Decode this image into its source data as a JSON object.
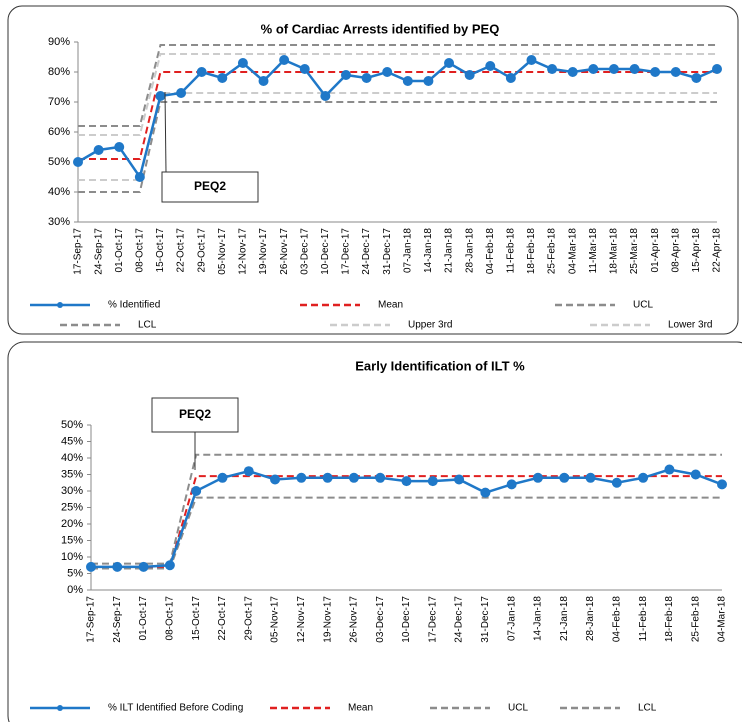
{
  "chart_data": [
    {
      "type": "line",
      "title": "% of Cardiac Arrests identified by PEQ",
      "annotation": "PEQ2",
      "categories": [
        "17-Sep-17",
        "24-Sep-17",
        "01-Oct-17",
        "08-Oct-17",
        "15-Oct-17",
        "22-Oct-17",
        "29-Oct-17",
        "05-Nov-17",
        "12-Nov-17",
        "19-Nov-17",
        "26-Nov-17",
        "03-Dec-17",
        "10-Dec-17",
        "17-Dec-17",
        "24-Dec-17",
        "31-Dec-17",
        "07-Jan-18",
        "14-Jan-18",
        "21-Jan-18",
        "28-Jan-18",
        "04-Feb-18",
        "11-Feb-18",
        "18-Feb-18",
        "25-Feb-18",
        "04-Mar-18",
        "11-Mar-18",
        "18-Mar-18",
        "25-Mar-18",
        "01-Apr-18",
        "08-Apr-18",
        "15-Apr-18",
        "22-Apr-18"
      ],
      "series": [
        {
          "name": "% Identified",
          "color": "#1f78c8",
          "values": [
            50,
            54,
            55,
            45,
            72,
            73,
            80,
            78,
            83,
            77,
            84,
            81,
            72,
            79,
            78,
            80,
            77,
            77,
            83,
            79,
            82,
            78,
            84,
            81,
            80,
            81,
            81,
            81,
            80,
            80,
            78,
            81
          ]
        },
        {
          "name": "Mean",
          "color": "#e02020",
          "values": [
            51,
            51,
            51,
            51,
            80,
            80,
            80,
            80,
            80,
            80,
            80,
            80,
            80,
            80,
            80,
            80,
            80,
            80,
            80,
            80,
            80,
            80,
            80,
            80,
            80,
            80,
            80,
            80,
            80,
            80,
            80,
            80
          ]
        },
        {
          "name": "UCL",
          "color": "#8c8c8c",
          "values": [
            62,
            62,
            62,
            62,
            89,
            89,
            89,
            89,
            89,
            89,
            89,
            89,
            89,
            89,
            89,
            89,
            89,
            89,
            89,
            89,
            89,
            89,
            89,
            89,
            89,
            89,
            89,
            89,
            89,
            89,
            89,
            89
          ]
        },
        {
          "name": "LCL",
          "color": "#8c8c8c",
          "values": [
            40,
            40,
            40,
            40,
            70,
            70,
            70,
            70,
            70,
            70,
            70,
            70,
            70,
            70,
            70,
            70,
            70,
            70,
            70,
            70,
            70,
            70,
            70,
            70,
            70,
            70,
            70,
            70,
            70,
            70,
            70,
            70
          ]
        },
        {
          "name": "Upper 3rd",
          "color": "#cccccc",
          "values": [
            59,
            59,
            59,
            59,
            86,
            86,
            86,
            86,
            86,
            86,
            86,
            86,
            86,
            86,
            86,
            86,
            86,
            86,
            86,
            86,
            86,
            86,
            86,
            86,
            86,
            86,
            86,
            86,
            86,
            86,
            86,
            86
          ]
        },
        {
          "name": "Lower 3rd",
          "color": "#cccccc",
          "values": [
            44,
            44,
            44,
            44,
            73,
            73,
            73,
            73,
            73,
            73,
            73,
            73,
            73,
            73,
            73,
            73,
            73,
            73,
            73,
            73,
            73,
            73,
            73,
            73,
            73,
            73,
            73,
            73,
            73,
            73,
            73,
            73
          ]
        }
      ],
      "ylim": [
        30,
        90
      ],
      "yticks": [
        {
          "value": 30,
          "label": "30%"
        },
        {
          "value": 40,
          "label": "40%"
        },
        {
          "value": 50,
          "label": "50%"
        },
        {
          "value": 60,
          "label": "60%"
        },
        {
          "value": 70,
          "label": "70%"
        },
        {
          "value": 80,
          "label": "80%"
        },
        {
          "value": 90,
          "label": "90%"
        }
      ]
    },
    {
      "type": "line",
      "title": "Early Identification of ILT %",
      "annotation": "PEQ2",
      "categories": [
        "17-Sep-17",
        "24-Sep-17",
        "01-Oct-17",
        "08-Oct-17",
        "15-Oct-17",
        "22-Oct-17",
        "29-Oct-17",
        "05-Nov-17",
        "12-Nov-17",
        "19-Nov-17",
        "26-Nov-17",
        "03-Dec-17",
        "10-Dec-17",
        "17-Dec-17",
        "24-Dec-17",
        "31-Dec-17",
        "07-Jan-18",
        "14-Jan-18",
        "21-Jan-18",
        "28-Jan-18",
        "04-Feb-18",
        "11-Feb-18",
        "18-Feb-18",
        "25-Feb-18",
        "04-Mar-18"
      ],
      "series": [
        {
          "name": "% ILT Identified Before Coding",
          "color": "#1f78c8",
          "values": [
            7,
            7,
            7,
            7.5,
            30,
            34,
            36,
            33.5,
            34,
            34,
            34,
            34,
            33,
            33,
            33.5,
            29.5,
            32,
            34,
            34,
            34,
            32.5,
            34,
            36.5,
            35,
            32
          ]
        },
        {
          "name": "Mean",
          "color": "#e02020",
          "values": [
            7,
            7,
            7,
            7,
            34.5,
            34.5,
            34.5,
            34.5,
            34.5,
            34.5,
            34.5,
            34.5,
            34.5,
            34.5,
            34.5,
            34.5,
            34.5,
            34.5,
            34.5,
            34.5,
            34.5,
            34.5,
            34.5,
            34.5,
            34.5
          ]
        },
        {
          "name": "UCL",
          "color": "#8c8c8c",
          "values": [
            8,
            8,
            8,
            8,
            41,
            41,
            41,
            41,
            41,
            41,
            41,
            41,
            41,
            41,
            41,
            41,
            41,
            41,
            41,
            41,
            41,
            41,
            41,
            41,
            41
          ]
        },
        {
          "name": "LCL",
          "color": "#8c8c8c",
          "values": [
            6.5,
            6.5,
            6.5,
            6.5,
            28,
            28,
            28,
            28,
            28,
            28,
            28,
            28,
            28,
            28,
            28,
            28,
            28,
            28,
            28,
            28,
            28,
            28,
            28,
            28,
            28
          ]
        }
      ],
      "ylim": [
        0,
        50
      ],
      "yticks": [
        {
          "value": 0,
          "label": "0%"
        },
        {
          "value": 5,
          "label": "5%"
        },
        {
          "value": 10,
          "label": "10%"
        },
        {
          "value": 15,
          "label": "15%"
        },
        {
          "value": 20,
          "label": "20%"
        },
        {
          "value": 25,
          "label": "25%"
        },
        {
          "value": 30,
          "label": "30%"
        },
        {
          "value": 35,
          "label": "35%"
        },
        {
          "value": 40,
          "label": "40%"
        },
        {
          "value": 45,
          "label": "45%"
        },
        {
          "value": 50,
          "label": "50%"
        }
      ]
    }
  ]
}
